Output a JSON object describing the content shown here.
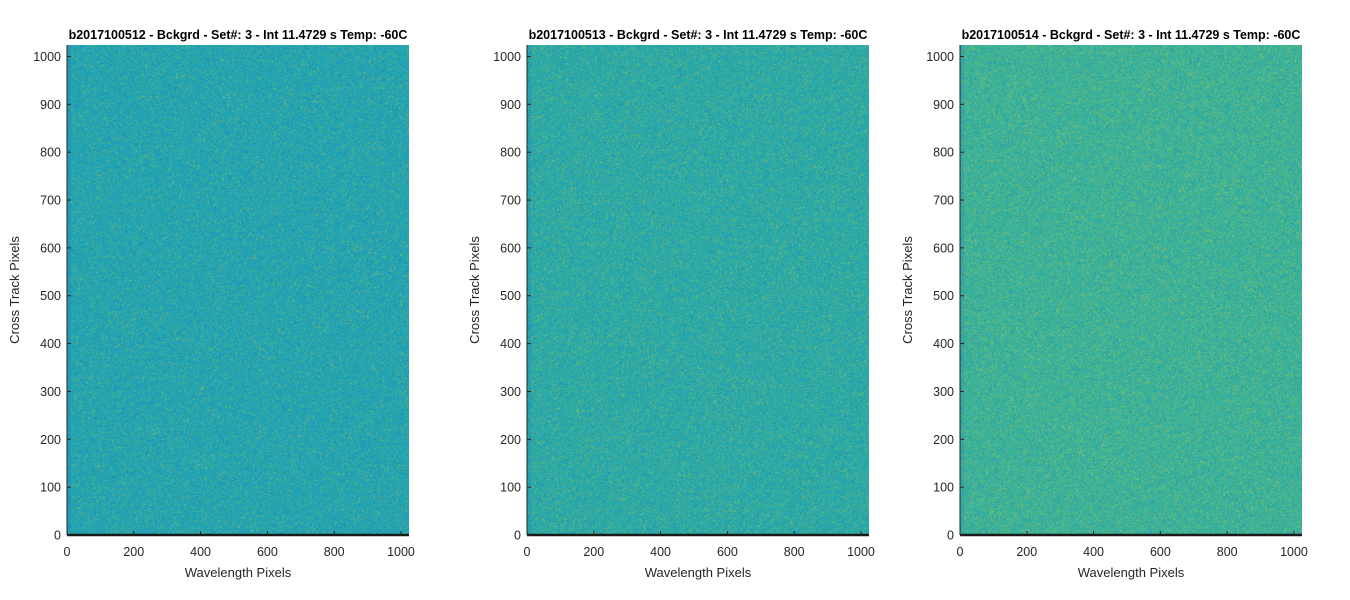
{
  "figure": {
    "chart_data": [
      {
        "type": "heatmap",
        "title": "b2017100512 - Bckgrd - Set#: 3 - Int 11.4729 s Temp: -60C",
        "xlabel": "Wavelength Pixels",
        "ylabel": "Cross Track Pixels",
        "xlim": [
          0,
          1024
        ],
        "ylim": [
          0,
          1024
        ],
        "xticks": [
          0,
          200,
          400,
          600,
          800,
          1000
        ],
        "yticks": [
          0,
          100,
          200,
          300,
          400,
          500,
          600,
          700,
          800,
          900,
          1000
        ],
        "colors": {
          "base": "#1fa3b4",
          "mid": "#3fae9c",
          "high": "#8cbf5a",
          "low": "#1b86c2"
        },
        "noise_level": 0.35
      },
      {
        "type": "heatmap",
        "title": "b2017100513 - Bckgrd - Set#: 3 - Int 11.4729 s Temp: -60C",
        "xlabel": "Wavelength Pixels",
        "ylabel": "Cross Track Pixels",
        "xlim": [
          0,
          1024
        ],
        "ylim": [
          0,
          1024
        ],
        "xticks": [
          0,
          200,
          400,
          600,
          800,
          1000
        ],
        "yticks": [
          0,
          100,
          200,
          300,
          400,
          500,
          600,
          700,
          800,
          900,
          1000
        ],
        "colors": {
          "base": "#24a8ab",
          "mid": "#44b096",
          "high": "#90c255",
          "low": "#1d8bbf"
        },
        "noise_level": 0.45
      },
      {
        "type": "heatmap",
        "title": "b2017100514 - Bckgrd - Set#: 3 - Int 11.4729 s Temp: -60C",
        "xlabel": "Wavelength Pixels",
        "ylabel": "Cross Track Pixels",
        "xlim": [
          0,
          1024
        ],
        "ylim": [
          0,
          1024
        ],
        "xticks": [
          0,
          200,
          400,
          600,
          800,
          1000
        ],
        "yticks": [
          0,
          100,
          200,
          300,
          400,
          500,
          600,
          700,
          800,
          900,
          1000
        ],
        "colors": {
          "base": "#32b09e",
          "mid": "#52b78d",
          "high": "#a0c650",
          "low": "#2295b6"
        },
        "noise_level": 0.55
      }
    ]
  }
}
